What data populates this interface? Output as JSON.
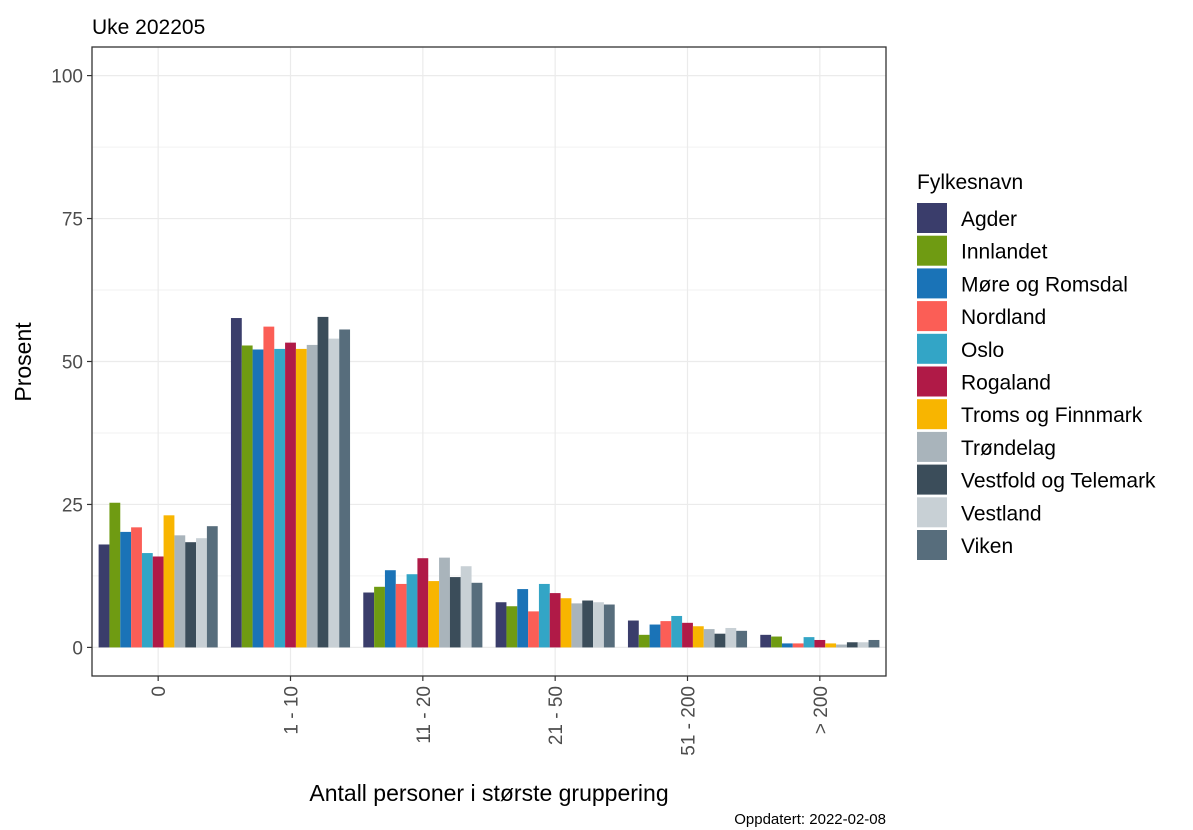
{
  "chart_data": {
    "type": "bar",
    "title": "Uke 202205",
    "xlabel": "Antall personer i største gruppering",
    "ylabel": "Prosent",
    "caption": "Oppdatert: 2022-02-08",
    "ylim": [
      -5,
      105
    ],
    "yticks": [
      "0",
      "25",
      "50",
      "75",
      "100"
    ],
    "grid": true,
    "legend_title": "Fylkesnavn",
    "legend_position": "right",
    "categories": [
      "0",
      "1 - 10",
      "11 - 20",
      "21 - 50",
      "51 - 200",
      "> 200"
    ],
    "series": [
      {
        "name": "Agder",
        "color": "#3a3d6b",
        "values": [
          18.0,
          57.6,
          9.6,
          7.9,
          4.7,
          2.2
        ]
      },
      {
        "name": "Innlandet",
        "color": "#6f9b12",
        "values": [
          25.3,
          52.8,
          10.6,
          7.2,
          2.2,
          1.9
        ]
      },
      {
        "name": "Møre og Romsdal",
        "color": "#1a73b7",
        "values": [
          20.2,
          52.1,
          13.5,
          10.2,
          4.0,
          0.7
        ]
      },
      {
        "name": "Nordland",
        "color": "#fb5e56",
        "values": [
          21.0,
          56.1,
          11.1,
          6.3,
          4.6,
          0.7
        ]
      },
      {
        "name": "Oslo",
        "color": "#33a5c6",
        "values": [
          16.5,
          52.2,
          12.8,
          11.1,
          5.5,
          1.8
        ]
      },
      {
        "name": "Rogaland",
        "color": "#b01a47",
        "values": [
          15.9,
          53.3,
          15.6,
          9.5,
          4.3,
          1.3
        ]
      },
      {
        "name": "Troms og Finnmark",
        "color": "#f8b500",
        "values": [
          23.1,
          52.2,
          11.6,
          8.6,
          3.7,
          0.7
        ]
      },
      {
        "name": "Trøndelag",
        "color": "#a9b4bb",
        "values": [
          19.6,
          52.9,
          15.7,
          7.7,
          3.2,
          0.5
        ]
      },
      {
        "name": "Vestfold og Telemark",
        "color": "#3b4d5a",
        "values": [
          18.4,
          57.8,
          12.3,
          8.2,
          2.4,
          0.9
        ]
      },
      {
        "name": "Vestland",
        "color": "#c8d0d5",
        "values": [
          19.1,
          54.0,
          14.2,
          7.9,
          3.4,
          0.9
        ]
      },
      {
        "name": "Viken",
        "color": "#576d7c",
        "values": [
          21.2,
          55.6,
          11.3,
          7.5,
          2.9,
          1.3
        ]
      }
    ]
  }
}
